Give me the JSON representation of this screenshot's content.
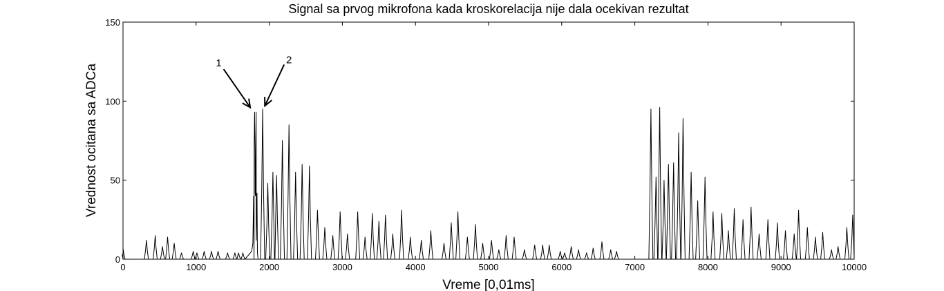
{
  "chart_data": {
    "type": "line",
    "title": "Signal sa prvog mikrofona kada kroskorelacija nije dala ocekivan rezultat",
    "xlabel": "Vreme [0,01ms]",
    "ylabel": "Vrednost ocitana sa ADCa",
    "xlim": [
      0,
      10000
    ],
    "ylim": [
      0,
      150
    ],
    "xticks": [
      0,
      1000,
      2000,
      3000,
      4000,
      5000,
      6000,
      7000,
      8000,
      9000,
      10000
    ],
    "yticks": [
      0,
      50,
      100,
      150
    ],
    "grid": false,
    "line_color": "#000000",
    "series": [
      {
        "peaks": [
          [
            0,
            7
          ],
          [
            320,
            12
          ],
          [
            440,
            15
          ],
          [
            540,
            8
          ],
          [
            610,
            14
          ],
          [
            700,
            10
          ],
          [
            800,
            4
          ],
          [
            960,
            5
          ],
          [
            1010,
            4
          ],
          [
            1110,
            5
          ],
          [
            1210,
            5
          ],
          [
            1300,
            5
          ],
          [
            1430,
            4
          ],
          [
            1530,
            4
          ],
          [
            1580,
            4
          ],
          [
            1640,
            4
          ],
          [
            1820,
            93
          ],
          [
            1910,
            95
          ],
          [
            1980,
            48
          ],
          [
            2050,
            55
          ],
          [
            2100,
            53
          ],
          [
            2180,
            75
          ],
          [
            2270,
            85
          ],
          [
            2360,
            55
          ],
          [
            2450,
            60
          ],
          [
            2550,
            59
          ],
          [
            2660,
            31
          ],
          [
            2760,
            20
          ],
          [
            2870,
            15
          ],
          [
            2970,
            30
          ],
          [
            3070,
            16
          ],
          [
            3210,
            30
          ],
          [
            3310,
            14
          ],
          [
            3410,
            29
          ],
          [
            3500,
            24
          ],
          [
            3590,
            28
          ],
          [
            3690,
            16
          ],
          [
            3810,
            31
          ],
          [
            3930,
            14
          ],
          [
            4080,
            12
          ],
          [
            4210,
            18
          ],
          [
            4390,
            10
          ],
          [
            4490,
            23
          ],
          [
            4580,
            30
          ],
          [
            4710,
            14
          ],
          [
            4820,
            22
          ],
          [
            4920,
            10
          ],
          [
            5040,
            12
          ],
          [
            5140,
            6
          ],
          [
            5240,
            15
          ],
          [
            5350,
            14
          ],
          [
            5490,
            6
          ],
          [
            5630,
            9
          ],
          [
            5740,
            9
          ],
          [
            5830,
            9
          ],
          [
            5980,
            5
          ],
          [
            6040,
            4
          ],
          [
            6130,
            8
          ],
          [
            6230,
            6
          ],
          [
            6340,
            4
          ],
          [
            6430,
            7
          ],
          [
            6550,
            11
          ],
          [
            6670,
            6
          ],
          [
            6750,
            5
          ],
          [
            7220,
            95
          ],
          [
            7290,
            52
          ],
          [
            7340,
            96
          ],
          [
            7400,
            50
          ],
          [
            7460,
            60
          ],
          [
            7530,
            61
          ],
          [
            7600,
            80
          ],
          [
            7660,
            89
          ],
          [
            7770,
            55
          ],
          [
            7860,
            37
          ],
          [
            7960,
            52
          ],
          [
            8070,
            30
          ],
          [
            8190,
            29
          ],
          [
            8280,
            18
          ],
          [
            8360,
            32
          ],
          [
            8480,
            25
          ],
          [
            8590,
            33
          ],
          [
            8700,
            16
          ],
          [
            8820,
            25
          ],
          [
            8950,
            23
          ],
          [
            9060,
            18
          ],
          [
            9180,
            16
          ],
          [
            9240,
            31
          ],
          [
            9360,
            20
          ],
          [
            9470,
            14
          ],
          [
            9570,
            17
          ],
          [
            9690,
            6
          ],
          [
            9780,
            8
          ],
          [
            9900,
            20
          ],
          [
            9980,
            28
          ]
        ],
        "fine_points": [
          [
            1760,
            5
          ],
          [
            1776,
            10
          ],
          [
            1786,
            40
          ],
          [
            1794,
            72
          ],
          [
            1800,
            93
          ],
          [
            1806,
            70
          ],
          [
            1813,
            40
          ],
          [
            1822,
            12
          ],
          [
            1838,
            4
          ],
          [
            1855,
            0
          ]
        ]
      }
    ],
    "annotations": [
      {
        "text": "1",
        "x": 1310,
        "y": 122
      },
      {
        "text": "2",
        "x": 2270,
        "y": 124
      }
    ]
  }
}
